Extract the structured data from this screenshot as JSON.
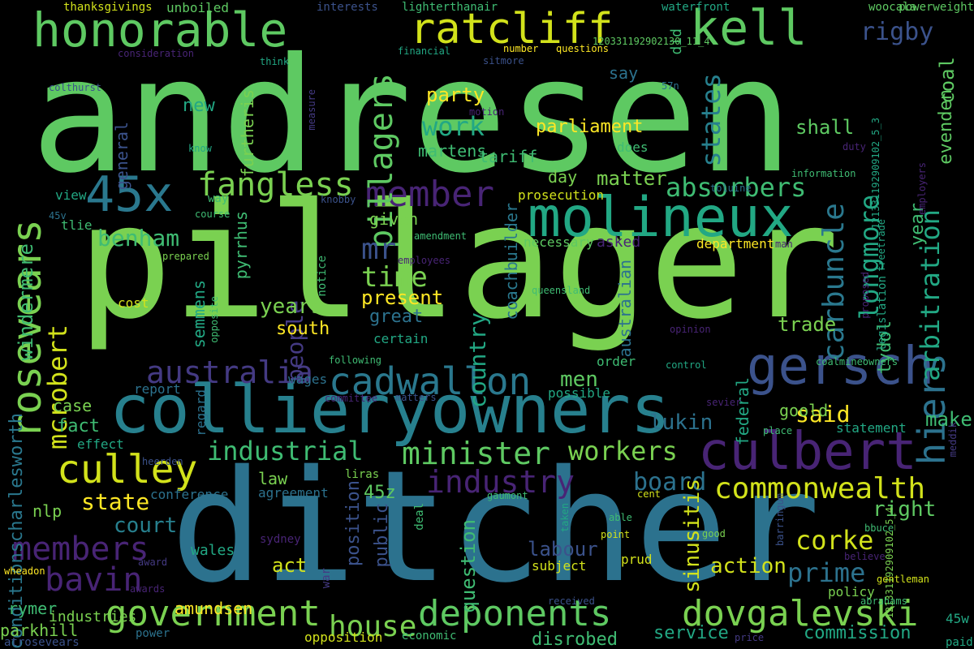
{
  "words": [
    {
      "text": "andresen",
      "color": "#5ec962"
    },
    {
      "text": "pillager",
      "color": "#7ad151"
    },
    {
      "text": "ditcher",
      "color": "#2c728e"
    },
    {
      "text": "collieryowners",
      "color": "#27808e"
    },
    {
      "text": "honorable",
      "color": "#5ec962"
    },
    {
      "text": "ratcliff",
      "color": "#d2e21b"
    },
    {
      "text": "kell",
      "color": "#5ec962"
    },
    {
      "text": "molineux",
      "color": "#22a884"
    },
    {
      "text": "45x",
      "color": "#2a788e"
    },
    {
      "text": "rosevears",
      "color": "#7ad151"
    },
    {
      "text": "culbert",
      "color": "#482475"
    },
    {
      "text": "gersch",
      "color": "#3b528b"
    },
    {
      "text": "hiers",
      "color": "#2c728e"
    },
    {
      "text": "government",
      "color": "#7ad151"
    },
    {
      "text": "deponents",
      "color": "#5ec962"
    },
    {
      "text": "dovgalevski",
      "color": "#7ad151"
    },
    {
      "text": "cadwallon",
      "color": "#2a788e"
    },
    {
      "text": "culley",
      "color": "#d2e21b"
    },
    {
      "text": "fangless",
      "color": "#7ad151"
    },
    {
      "text": "member",
      "color": "#482475"
    },
    {
      "text": "australia",
      "color": "#443a83"
    },
    {
      "text": "minister",
      "color": "#5ec962"
    },
    {
      "text": "commonwealth",
      "color": "#d2e21b"
    },
    {
      "text": "workers",
      "color": "#7ad151"
    },
    {
      "text": "industry",
      "color": "#482475"
    },
    {
      "text": "members",
      "color": "#482475"
    },
    {
      "text": "bavin",
      "color": "#482475"
    },
    {
      "text": "house",
      "color": "#7ad151"
    },
    {
      "text": "industrial",
      "color": "#3fbc73"
    },
    {
      "text": "pillagers",
      "color": "#5ec962"
    },
    {
      "text": "carbuncle",
      "color": "#2a788e"
    },
    {
      "text": "longmore",
      "color": "#22a884"
    },
    {
      "text": "arbitration",
      "color": "#22a884"
    },
    {
      "text": "absorbers",
      "color": "#3fbc73"
    },
    {
      "text": "states",
      "color": "#27808e"
    },
    {
      "text": "rigby",
      "color": "#3b528b"
    },
    {
      "text": "benham",
      "color": "#3fbc73"
    },
    {
      "text": "mcrobert",
      "color": "#d2e21b"
    },
    {
      "text": "windermere",
      "color": "#3fbc73"
    },
    {
      "text": "conditionscharlesworth",
      "color": "#2a788e"
    },
    {
      "text": "mr",
      "color": "#3b528b"
    },
    {
      "text": "time",
      "color": "#7ad151"
    },
    {
      "text": "people",
      "color": "#443a83"
    },
    {
      "text": "country",
      "color": "#22a884"
    },
    {
      "text": "work",
      "color": "#22a884"
    },
    {
      "text": "years",
      "color": "#7ad151"
    },
    {
      "text": "present",
      "color": "#fde725"
    },
    {
      "text": "state",
      "color": "#fde725"
    },
    {
      "text": "corke",
      "color": "#d2e21b"
    },
    {
      "text": "prime",
      "color": "#2c728e"
    },
    {
      "text": "board",
      "color": "#2c728e"
    },
    {
      "text": "lukin",
      "color": "#2c728e"
    },
    {
      "text": "said",
      "color": "#fde725"
    },
    {
      "text": "men",
      "color": "#5ec962"
    },
    {
      "text": "court",
      "color": "#27808e"
    },
    {
      "text": "action",
      "color": "#d2e21b"
    },
    {
      "text": "labour",
      "color": "#3b528b"
    },
    {
      "text": "right",
      "color": "#5ec962"
    },
    {
      "text": "make",
      "color": "#3fbc73"
    },
    {
      "text": "goold",
      "color": "#7ad151"
    },
    {
      "text": "federal",
      "color": "#22a884"
    },
    {
      "text": "trade",
      "color": "#7ad151"
    },
    {
      "text": "tydol",
      "color": "#3fbc73"
    },
    {
      "text": "sinusitis",
      "color": "#d2e21b"
    },
    {
      "text": "amundsen",
      "color": "#fde725"
    },
    {
      "text": "service",
      "color": "#22a884"
    },
    {
      "text": "commission",
      "color": "#22a884"
    },
    {
      "text": "disrobed",
      "color": "#3fbc73"
    },
    {
      "text": "act",
      "color": "#d2e21b"
    },
    {
      "text": "law",
      "color": "#7ad151"
    },
    {
      "text": "45z",
      "color": "#5ec962"
    },
    {
      "text": "public",
      "color": "#3b528b"
    },
    {
      "text": "question",
      "color": "#3fbc73"
    },
    {
      "text": "position",
      "color": "#3b528b"
    },
    {
      "text": "rymer",
      "color": "#3fbc73"
    },
    {
      "text": "parkhill",
      "color": "#7ad151"
    },
    {
      "text": "industries",
      "color": "#7ad151"
    },
    {
      "text": "matter",
      "color": "#7ad151"
    },
    {
      "text": "day",
      "color": "#7ad151"
    },
    {
      "text": "parliament",
      "color": "#fde725"
    },
    {
      "text": "party",
      "color": "#fde725"
    },
    {
      "text": "tariff",
      "color": "#3fbc73"
    },
    {
      "text": "martens",
      "color": "#3fbc73"
    },
    {
      "text": "south",
      "color": "#fde725"
    },
    {
      "text": "great",
      "color": "#2c728e"
    },
    {
      "text": "given",
      "color": "#7ad151"
    },
    {
      "text": "shall",
      "color": "#5ec962"
    },
    {
      "text": "fact",
      "color": "#3fbc73"
    },
    {
      "text": "case",
      "color": "#7ad151"
    },
    {
      "text": "new",
      "color": "#22a884"
    },
    {
      "text": "say",
      "color": "#2c728e"
    },
    {
      "text": "pyrrhus",
      "color": "#3fbc73"
    },
    {
      "text": "semmens",
      "color": "#22a884"
    },
    {
      "text": "general",
      "color": "#3b528b"
    },
    {
      "text": "furtheris",
      "color": "#7ad151"
    },
    {
      "text": "coachbuilder",
      "color": "#2a788e"
    },
    {
      "text": "australian",
      "color": "#2c728e"
    },
    {
      "text": "asked",
      "color": "#482475"
    },
    {
      "text": "department",
      "color": "#fde725"
    },
    {
      "text": "coal",
      "color": "#5ec962"
    },
    {
      "text": "evenden",
      "color": "#5ec962"
    },
    {
      "text": "year",
      "color": "#3fbc73"
    },
    {
      "text": "wales",
      "color": "#22a884"
    },
    {
      "text": "agreement",
      "color": "#2c728e"
    },
    {
      "text": "conference",
      "color": "#2c728e"
    },
    {
      "text": "regard",
      "color": "#2c728e"
    },
    {
      "text": "effect",
      "color": "#22a884"
    },
    {
      "text": "report",
      "color": "#2c728e"
    },
    {
      "text": "wages",
      "color": "#2c728e"
    },
    {
      "text": "possible",
      "color": "#22a884"
    },
    {
      "text": "cost",
      "color": "#d2e21b"
    },
    {
      "text": "certain",
      "color": "#22a884"
    },
    {
      "text": "prosecution",
      "color": "#d2e21b"
    },
    {
      "text": "necessary",
      "color": "#5ec962"
    },
    {
      "text": "does",
      "color": "#3fbc73"
    },
    {
      "text": "did",
      "color": "#3fbc73"
    },
    {
      "text": "order",
      "color": "#3fbc73"
    },
    {
      "text": "subject",
      "color": "#d2e21b"
    },
    {
      "text": "prud",
      "color": "#d2e21b"
    },
    {
      "text": "policy",
      "color": "#7ad151"
    },
    {
      "text": "statement",
      "color": "#22a884"
    },
    {
      "text": "45w",
      "color": "#22a884"
    },
    {
      "text": "paid",
      "color": "#22a884"
    },
    {
      "text": "opposition",
      "color": "#d2e21b"
    },
    {
      "text": "economic",
      "color": "#3fbc73"
    },
    {
      "text": "power",
      "color": "#2c728e"
    },
    {
      "text": "atrosevears",
      "color": "#3b528b"
    },
    {
      "text": "nlp",
      "color": "#7ad151"
    },
    {
      "text": "view",
      "color": "#22a884"
    },
    {
      "text": "tlie",
      "color": "#3fbc73"
    },
    {
      "text": "way",
      "color": "#3fbc73"
    },
    {
      "text": "unboiled",
      "color": "#5ec962"
    },
    {
      "text": "thanksgivings",
      "color": "#d2e21b"
    },
    {
      "text": "interests",
      "color": "#3b528b"
    },
    {
      "text": "lighterthanair",
      "color": "#3fbc73"
    },
    {
      "text": "waterfront",
      "color": "#22a884"
    },
    {
      "text": "woocala",
      "color": "#5ec962"
    },
    {
      "text": "powerweight",
      "color": "#5ec962"
    },
    {
      "text": "consideration",
      "color": "#482475"
    },
    {
      "text": "financial",
      "color": "#22a884"
    },
    {
      "text": "number",
      "color": "#fde725"
    },
    {
      "text": "questions",
      "color": "#fde725"
    },
    {
      "text": "sitmore",
      "color": "#3b528b"
    },
    {
      "text": "120331192902130_11_4",
      "color": "#5ec962"
    },
    {
      "text": "think",
      "color": "#22a884"
    },
    {
      "text": "colthurst",
      "color": "#3b528b"
    },
    {
      "text": "measure",
      "color": "#443a83"
    },
    {
      "text": "motion",
      "color": "#482475"
    },
    {
      "text": "57n",
      "color": "#2c728e"
    },
    {
      "text": "know",
      "color": "#22a884"
    },
    {
      "text": "121331192909102_5_3",
      "color": "#22a884"
    },
    {
      "text": "duty",
      "color": "#482475"
    },
    {
      "text": "toluine",
      "color": "#2c728e"
    },
    {
      "text": "information",
      "color": "#3fbc73"
    },
    {
      "text": "employers",
      "color": "#482475"
    },
    {
      "text": "knobby",
      "color": "#3b528b"
    },
    {
      "text": "course",
      "color": "#3fbc73"
    },
    {
      "text": "45v",
      "color": "#2c728e"
    },
    {
      "text": "amendment",
      "color": "#3fbc73"
    },
    {
      "text": "employees",
      "color": "#482475"
    },
    {
      "text": "prepared",
      "color": "#7ad151"
    },
    {
      "text": "notice",
      "color": "#3fbc73"
    },
    {
      "text": "opposite",
      "color": "#3fbc73"
    },
    {
      "text": "queensland",
      "color": "#3fbc73"
    },
    {
      "text": "freetrade",
      "color": "#22a884"
    },
    {
      "text": "legislation",
      "color": "#22a884"
    },
    {
      "text": "proposed",
      "color": "#482475"
    },
    {
      "text": "man",
      "color": "#482475"
    },
    {
      "text": "opinion",
      "color": "#482475"
    },
    {
      "text": "control",
      "color": "#22a884"
    },
    {
      "text": "coalmineowners",
      "color": "#3fbc73"
    },
    {
      "text": "following",
      "color": "#3fbc73"
    },
    {
      "text": "committee",
      "color": "#482475"
    },
    {
      "text": "matters",
      "color": "#3b528b"
    },
    {
      "text": "sevier",
      "color": "#482475"
    },
    {
      "text": "place",
      "color": "#3fbc73"
    },
    {
      "text": "heerden",
      "color": "#3b528b"
    },
    {
      "text": "liras",
      "color": "#7ad151"
    },
    {
      "text": "deal",
      "color": "#3fbc73"
    },
    {
      "text": "gaumont",
      "color": "#3fbc73"
    },
    {
      "text": "cent",
      "color": "#d2e21b"
    },
    {
      "text": "able",
      "color": "#3fbc73"
    },
    {
      "text": "taken",
      "color": "#22a884"
    },
    {
      "text": "point",
      "color": "#d2e21b"
    },
    {
      "text": "barringum",
      "color": "#3b528b"
    },
    {
      "text": "good",
      "color": "#7ad151"
    },
    {
      "text": "bbuce",
      "color": "#3fbc73"
    },
    {
      "text": "121331192909102_5_4",
      "color": "#7ad151"
    },
    {
      "text": "meddik",
      "color": "#443a83"
    },
    {
      "text": "believe",
      "color": "#482475"
    },
    {
      "text": "gentleman",
      "color": "#d2e21b"
    },
    {
      "text": "abrahams",
      "color": "#3fbc73"
    },
    {
      "text": "sydney",
      "color": "#482475"
    },
    {
      "text": "war",
      "color": "#443a83"
    },
    {
      "text": "award",
      "color": "#443a83"
    },
    {
      "text": "awards",
      "color": "#482475"
    },
    {
      "text": "wheadon",
      "color": "#fde725"
    },
    {
      "text": "received",
      "color": "#3b528b"
    },
    {
      "text": "price",
      "color": "#443a83"
    }
  ]
}
